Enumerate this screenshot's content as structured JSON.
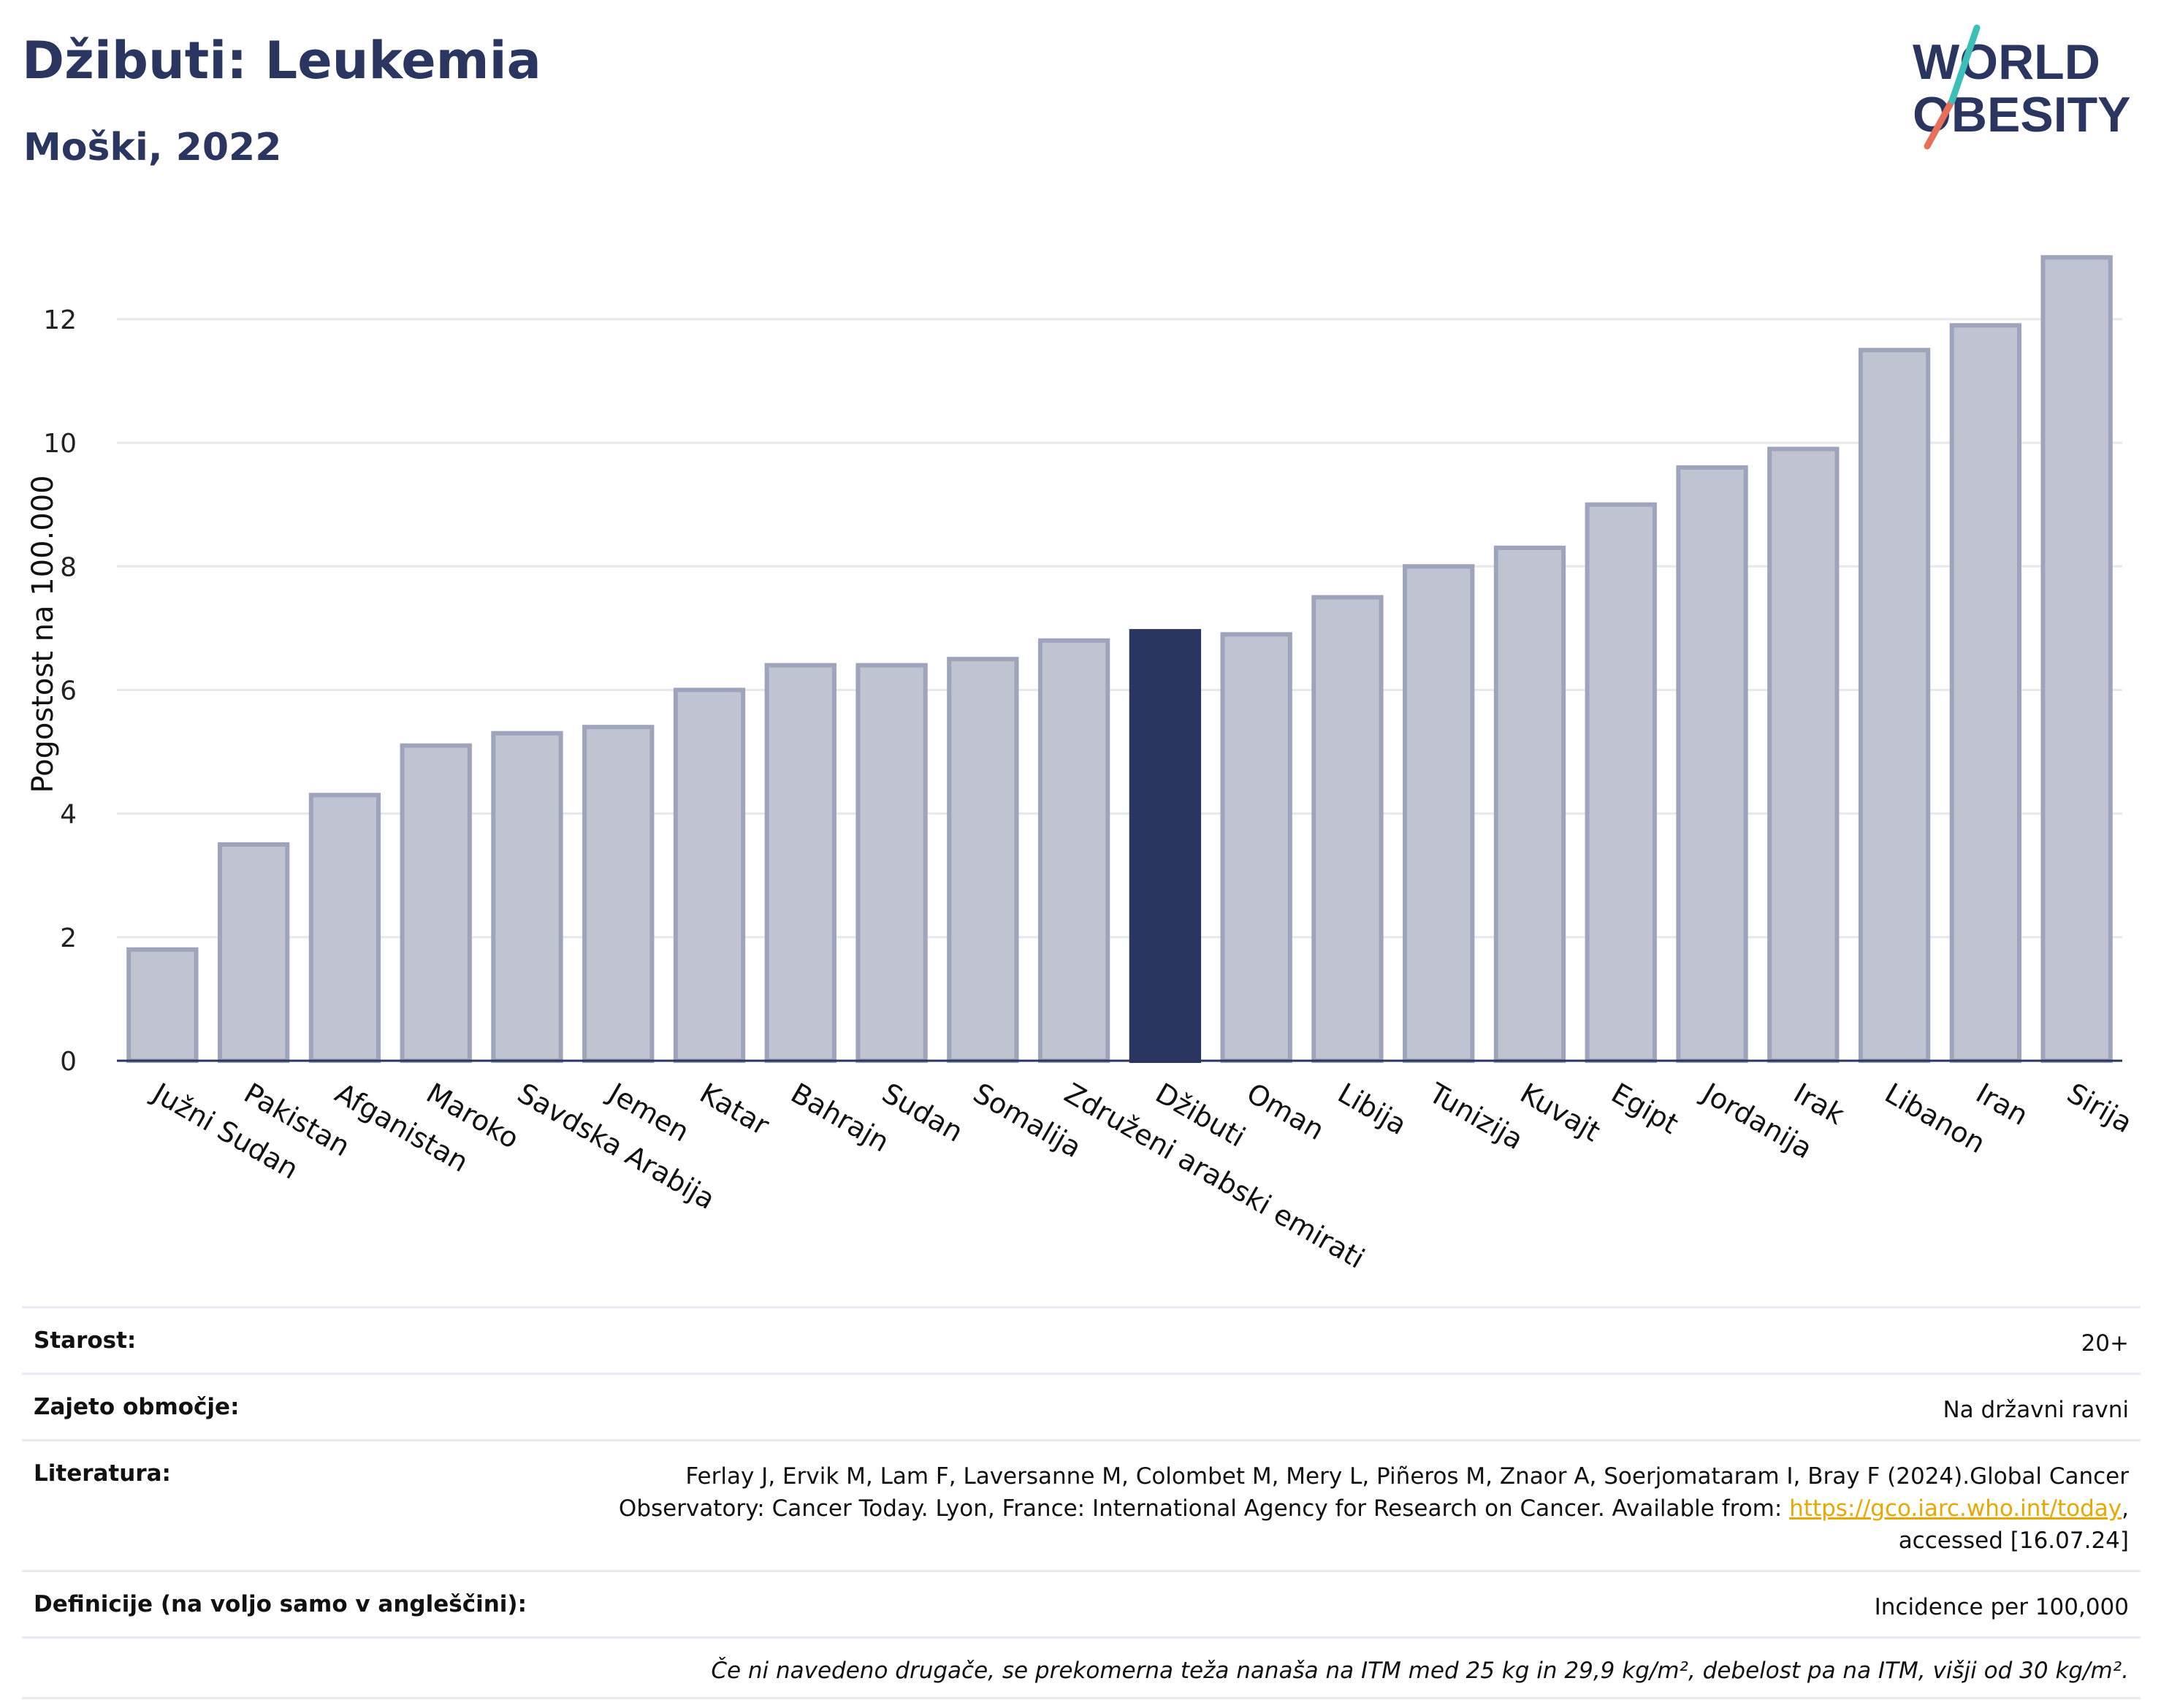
{
  "header": {
    "title": "Džibuti: Leukemia",
    "subtitle": "Moški, 2022"
  },
  "logo": {
    "line1": "WORLD",
    "line2": "OBESITY"
  },
  "colors": {
    "highlight": "#2b3561",
    "bar": "#bfc3d2",
    "bar_stroke": "#9ea4bb",
    "axis": "#2a3560"
  },
  "chart_data": {
    "type": "bar",
    "ylabel": "Pogostost na 100.000",
    "ylim": [
      0,
      13.5
    ],
    "yticks": [
      0,
      2,
      4,
      6,
      8,
      10,
      12
    ],
    "grid": true,
    "highlight": "Džibuti",
    "categories": [
      "Južni Sudan",
      "Pakistan",
      "Afganistan",
      "Maroko",
      "Savdska Arabija",
      "Jemen",
      "Katar",
      "Bahrajn",
      "Sudan",
      "Somalija",
      "Združeni arabski emirati",
      "Džibuti",
      "Oman",
      "Libija",
      "Tunizija",
      "Kuvajt",
      "Egipt",
      "Jordanija",
      "Irak",
      "Libanon",
      "Iran",
      "Sirija"
    ],
    "values": [
      1.8,
      3.5,
      4.3,
      5.1,
      5.3,
      5.4,
      6.0,
      6.4,
      6.4,
      6.5,
      6.8,
      6.95,
      6.9,
      7.5,
      8.0,
      8.3,
      9.0,
      9.6,
      9.9,
      11.5,
      11.9,
      13.0
    ]
  },
  "meta": {
    "age_label": "Starost:",
    "age_value": "20+",
    "coverage_label": "Zajeto območje:",
    "coverage_value": "Na državni ravni",
    "literature_label": "Literatura:",
    "literature_line1": "Ferlay J, Ervik M, Lam F, Laversanne M, Colombet M, Mery L, Piñeros M, Znaor A, Soerjomataram I, Bray F (2024).Global Cancer",
    "literature_line2": "Observatory: Cancer Today. Lyon, France: International Agency for Research on Cancer. Available from: ",
    "literature_link": "https://gco.iarc.who.int/today",
    "literature_line2_end": ",",
    "literature_line3": "accessed [16.07.24]",
    "definitions_label": "Definicije (na voljo samo v angleščini):",
    "definitions_value": "Incidence per 100,000",
    "note": "Če ni navedeno drugače, se prekomerna teža nanaša na ITM med 25 kg in 29,9 kg/m², debelost pa na ITM, višji od 30 kg/m²."
  }
}
